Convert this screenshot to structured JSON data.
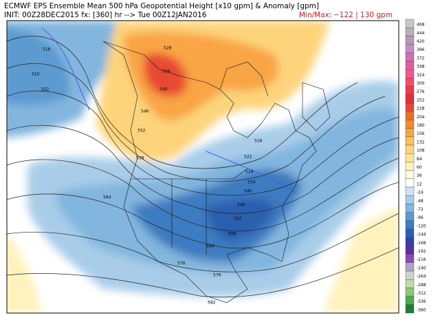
{
  "header": {
    "title": "ECMWF EPS Ensemble Mean 500 hPa Geopotential Height [x10 gpm] & Anomaly [gpm]",
    "init": "INIT: 00Z28DEC2015 fx: [360] hr --> Tue 00Z12JAN2016",
    "minmax_label": "Min/Max:",
    "minmax_value": "−122 | 130 gpm"
  },
  "colorbar": {
    "labels": [
      468,
      444,
      420,
      396,
      372,
      348,
      324,
      300,
      276,
      252,
      228,
      204,
      180,
      156,
      132,
      108,
      84,
      60,
      36,
      12,
      -24,
      -48,
      -72,
      -96,
      -120,
      -144,
      -168,
      -192,
      -216,
      -240,
      -264,
      -288,
      -312,
      -336,
      -360
    ],
    "colors": [
      "#c8c8c8",
      "#bcaebc",
      "#b49ab4",
      "#c88cc8",
      "#d070b4",
      "#e0609c",
      "#f05a8c",
      "#f04c6c",
      "#e83c4c",
      "#e0303c",
      "#e84830",
      "#f06a28",
      "#f58a30",
      "#f9a444",
      "#fbbe5c",
      "#fdd47c",
      "#fee59c",
      "#fff2bc",
      "#fffbe0",
      "#ffffff",
      "#cfe3f3",
      "#a9cde9",
      "#82b6de",
      "#5c9ad0",
      "#3c7cc0",
      "#2a5eae",
      "#3a3ea4",
      "#5a2e9c",
      "#8a4cb4",
      "#b0a4c4",
      "#d0d0d0",
      "#bcdca0",
      "#8cc878",
      "#50a850",
      "#1c8030"
    ]
  },
  "map": {
    "contour_labels": [
      "516",
      "510",
      "522",
      "528",
      "534",
      "540",
      "546",
      "552",
      "558",
      "522",
      "516",
      "528",
      "534",
      "540",
      "546",
      "552",
      "558",
      "564",
      "570",
      "576",
      "582",
      "564"
    ]
  }
}
